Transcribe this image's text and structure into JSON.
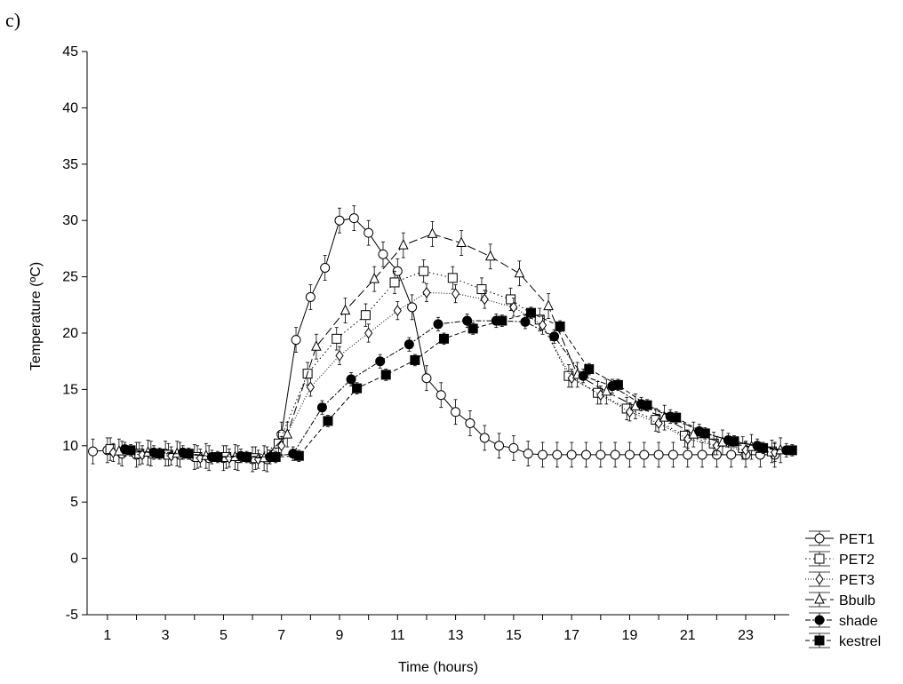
{
  "panel_label": "c)",
  "chart_data": {
    "type": "line",
    "title": "",
    "xlabel": "Time (hours)",
    "ylabel": "Temperature (ºC)",
    "xlim": [
      0.3,
      24.5
    ],
    "ylim": [
      -5,
      45
    ],
    "xticks": [
      1,
      3,
      5,
      7,
      9,
      11,
      13,
      15,
      17,
      19,
      21,
      23
    ],
    "yticks": [
      -5,
      0,
      5,
      10,
      15,
      20,
      25,
      30,
      35,
      40,
      45
    ],
    "grid": false,
    "legend_position": "bottom-right outside",
    "series": [
      {
        "name": "PET1",
        "marker": "circle-open",
        "dash": "",
        "x": [
          0.5,
          1,
          1.5,
          2,
          2.5,
          3,
          3.5,
          4,
          4.5,
          5,
          5.5,
          6,
          6.5,
          7,
          7.5,
          8,
          8.5,
          9,
          9.5,
          10,
          10.5,
          11,
          11.5,
          12,
          12.5,
          13,
          13.5,
          14,
          14.5,
          15,
          15.5,
          16,
          16.5,
          17,
          17.5,
          18,
          18.5,
          19,
          19.5,
          20,
          20.5,
          21,
          21.5,
          22,
          22.5,
          23,
          23.5,
          24
        ],
        "y": [
          9.5,
          9.6,
          9.3,
          9.2,
          9.3,
          9.3,
          9.2,
          9.0,
          8.9,
          8.9,
          8.9,
          8.8,
          8.8,
          11.0,
          19.4,
          23.2,
          25.8,
          30.0,
          30.2,
          28.9,
          27.0,
          25.5,
          22.3,
          16.0,
          14.5,
          13.0,
          12.0,
          10.7,
          10.0,
          9.8,
          9.3,
          9.2,
          9.2,
          9.2,
          9.2,
          9.2,
          9.2,
          9.2,
          9.2,
          9.2,
          9.2,
          9.2,
          9.2,
          9.2,
          9.2,
          9.2,
          9.2,
          9.2
        ],
        "err": 1.1
      },
      {
        "name": "PET2",
        "marker": "square-open",
        "dash": "1.5,3",
        "x": [
          1.1,
          2.1,
          3.1,
          4.1,
          5.1,
          6.1,
          6.9,
          7.9,
          8.9,
          9.9,
          10.9,
          11.9,
          12.9,
          13.9,
          14.9,
          15.9,
          16.9,
          17.9,
          18.9,
          19.9,
          20.9,
          21.9,
          22.9,
          23.9
        ],
        "y": [
          9.7,
          9.3,
          9.2,
          9.0,
          9.0,
          8.9,
          10.2,
          16.4,
          19.5,
          21.6,
          24.5,
          25.5,
          24.9,
          23.9,
          23.0,
          21.2,
          16.2,
          14.7,
          13.3,
          12.3,
          10.9,
          10.2,
          9.8,
          9.5
        ],
        "err": 1.0
      },
      {
        "name": "PET3",
        "marker": "diamond-open",
        "dash": "1,2",
        "x": [
          1.2,
          2.2,
          3.2,
          4.2,
          5.2,
          6.2,
          7.0,
          8.0,
          9.0,
          10.0,
          11.0,
          12.0,
          13.0,
          14.0,
          15.0,
          16.0,
          17.0,
          18.0,
          19.0,
          20.0,
          21.0,
          22.0,
          23.0,
          24.0
        ],
        "y": [
          9.4,
          9.2,
          9.1,
          8.9,
          8.9,
          8.8,
          10.0,
          15.2,
          18.0,
          20.0,
          22.0,
          23.6,
          23.5,
          23.0,
          22.3,
          20.7,
          16.0,
          14.5,
          13.0,
          12.0,
          10.6,
          10.0,
          9.6,
          9.4
        ],
        "err": 0.8
      },
      {
        "name": "Bbulb",
        "marker": "triangle-open",
        "dash": "10,4",
        "x": [
          1.4,
          2.4,
          3.4,
          4.4,
          5.4,
          6.4,
          7.2,
          8.2,
          9.2,
          10.2,
          11.2,
          12.2,
          13.2,
          14.2,
          15.2,
          16.2,
          17.2,
          18.2,
          19.2,
          20.2,
          21.2,
          22.2,
          23.2,
          24.2
        ],
        "y": [
          9.5,
          9.4,
          9.3,
          9.1,
          9.0,
          8.9,
          11.0,
          18.8,
          22.0,
          24.8,
          27.8,
          28.8,
          28.0,
          26.8,
          25.3,
          22.4,
          16.3,
          14.8,
          13.5,
          12.5,
          11.0,
          10.3,
          9.9,
          9.6
        ],
        "err": 1.1
      },
      {
        "name": "shade",
        "marker": "circle-filled",
        "dash": "6,2,2,2",
        "x": [
          1.6,
          2.6,
          3.6,
          4.6,
          5.6,
          6.6,
          7.4,
          8.4,
          9.4,
          10.4,
          11.4,
          12.4,
          13.4,
          14.4,
          15.4,
          16.4,
          17.4,
          18.4,
          19.4,
          20.4,
          21.4,
          22.4,
          23.4,
          24.4
        ],
        "y": [
          9.7,
          9.4,
          9.4,
          9.0,
          9.1,
          9.0,
          9.3,
          13.4,
          15.9,
          17.5,
          19.0,
          20.8,
          21.1,
          21.1,
          21.0,
          19.7,
          16.2,
          15.3,
          13.7,
          12.6,
          11.3,
          10.5,
          10.0,
          9.6
        ],
        "err": 0.6
      },
      {
        "name": "kestrel",
        "marker": "square-filled",
        "dash": "5,3",
        "x": [
          1.8,
          2.8,
          3.8,
          4.8,
          5.8,
          6.8,
          7.6,
          8.6,
          9.6,
          10.6,
          11.6,
          12.6,
          13.6,
          14.6,
          15.6,
          16.6,
          17.6,
          18.6,
          19.6,
          20.6,
          21.6,
          22.6,
          23.6,
          24.6
        ],
        "y": [
          9.6,
          9.3,
          9.3,
          9.0,
          9.0,
          9.0,
          9.1,
          12.2,
          15.1,
          16.3,
          17.6,
          19.5,
          20.4,
          21.1,
          21.8,
          20.6,
          16.8,
          15.4,
          13.6,
          12.5,
          11.1,
          10.4,
          9.8,
          9.6
        ],
        "err": 0.5
      }
    ]
  }
}
